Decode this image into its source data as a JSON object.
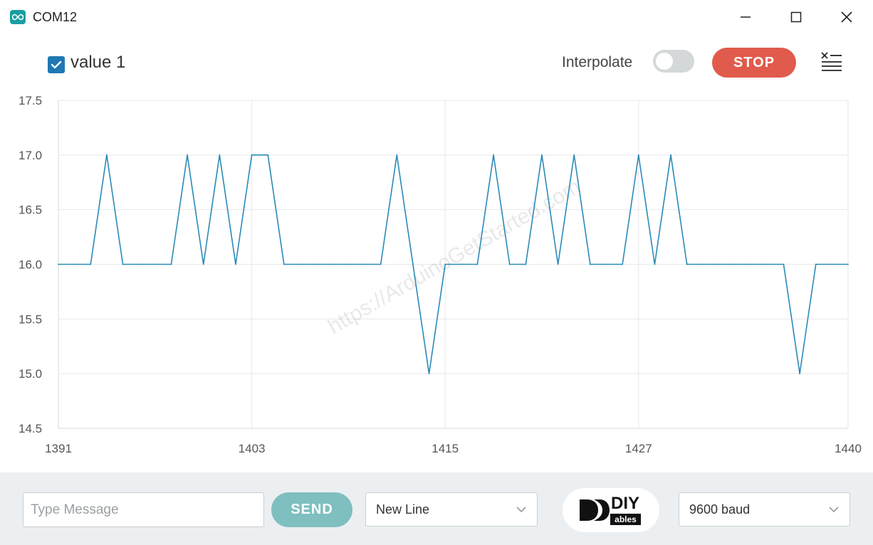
{
  "window": {
    "title": "COM12"
  },
  "toolbar": {
    "series_label": "value 1",
    "series_checked": true,
    "interpolate_label": "Interpolate",
    "interpolate_on": false,
    "stop_label": "STOP"
  },
  "bottom": {
    "message_placeholder": "Type Message",
    "send_label": "SEND",
    "line_ending": "New Line",
    "logo_text": "DIY",
    "logo_subtext": "ables",
    "baud": "9600 baud"
  },
  "colors": {
    "series": "#2a8ab8",
    "stop": "#e05b4b",
    "send": "#7fbfbf",
    "checkbox": "#1f78b4",
    "bottom_bg": "#eceff1"
  },
  "chart_data": {
    "type": "line",
    "title": "",
    "xlabel": "",
    "ylabel": "",
    "xlim": [
      1391,
      1440
    ],
    "ylim": [
      14.5,
      17.5
    ],
    "x_ticks": [
      1391,
      1403,
      1415,
      1427,
      1440
    ],
    "y_ticks": [
      "17.5",
      "17.0",
      "16.5",
      "16.0",
      "15.5",
      "15.0",
      "14.5"
    ],
    "grid": true,
    "watermark": "https://ArduinoGetStarted.com",
    "series": [
      {
        "name": "value 1",
        "x": [
          1391,
          1392,
          1393,
          1394,
          1395,
          1396,
          1397,
          1398,
          1399,
          1400,
          1401,
          1402,
          1403,
          1404,
          1405,
          1406,
          1407,
          1408,
          1409,
          1410,
          1411,
          1412,
          1413,
          1414,
          1415,
          1416,
          1417,
          1418,
          1419,
          1420,
          1421,
          1422,
          1423,
          1424,
          1425,
          1426,
          1427,
          1428,
          1429,
          1430,
          1431,
          1432,
          1433,
          1434,
          1435,
          1436,
          1437,
          1438,
          1439,
          1440
        ],
        "values": [
          16,
          16,
          16,
          17,
          16,
          16,
          16,
          16,
          17,
          16,
          17,
          16,
          17,
          17,
          16,
          16,
          16,
          16,
          16,
          16,
          16,
          17,
          16,
          15,
          16,
          16,
          16,
          17,
          16,
          16,
          17,
          16,
          17,
          16,
          16,
          16,
          17,
          16,
          17,
          16,
          16,
          16,
          16,
          16,
          16,
          16,
          15,
          16,
          16,
          16
        ]
      }
    ]
  }
}
